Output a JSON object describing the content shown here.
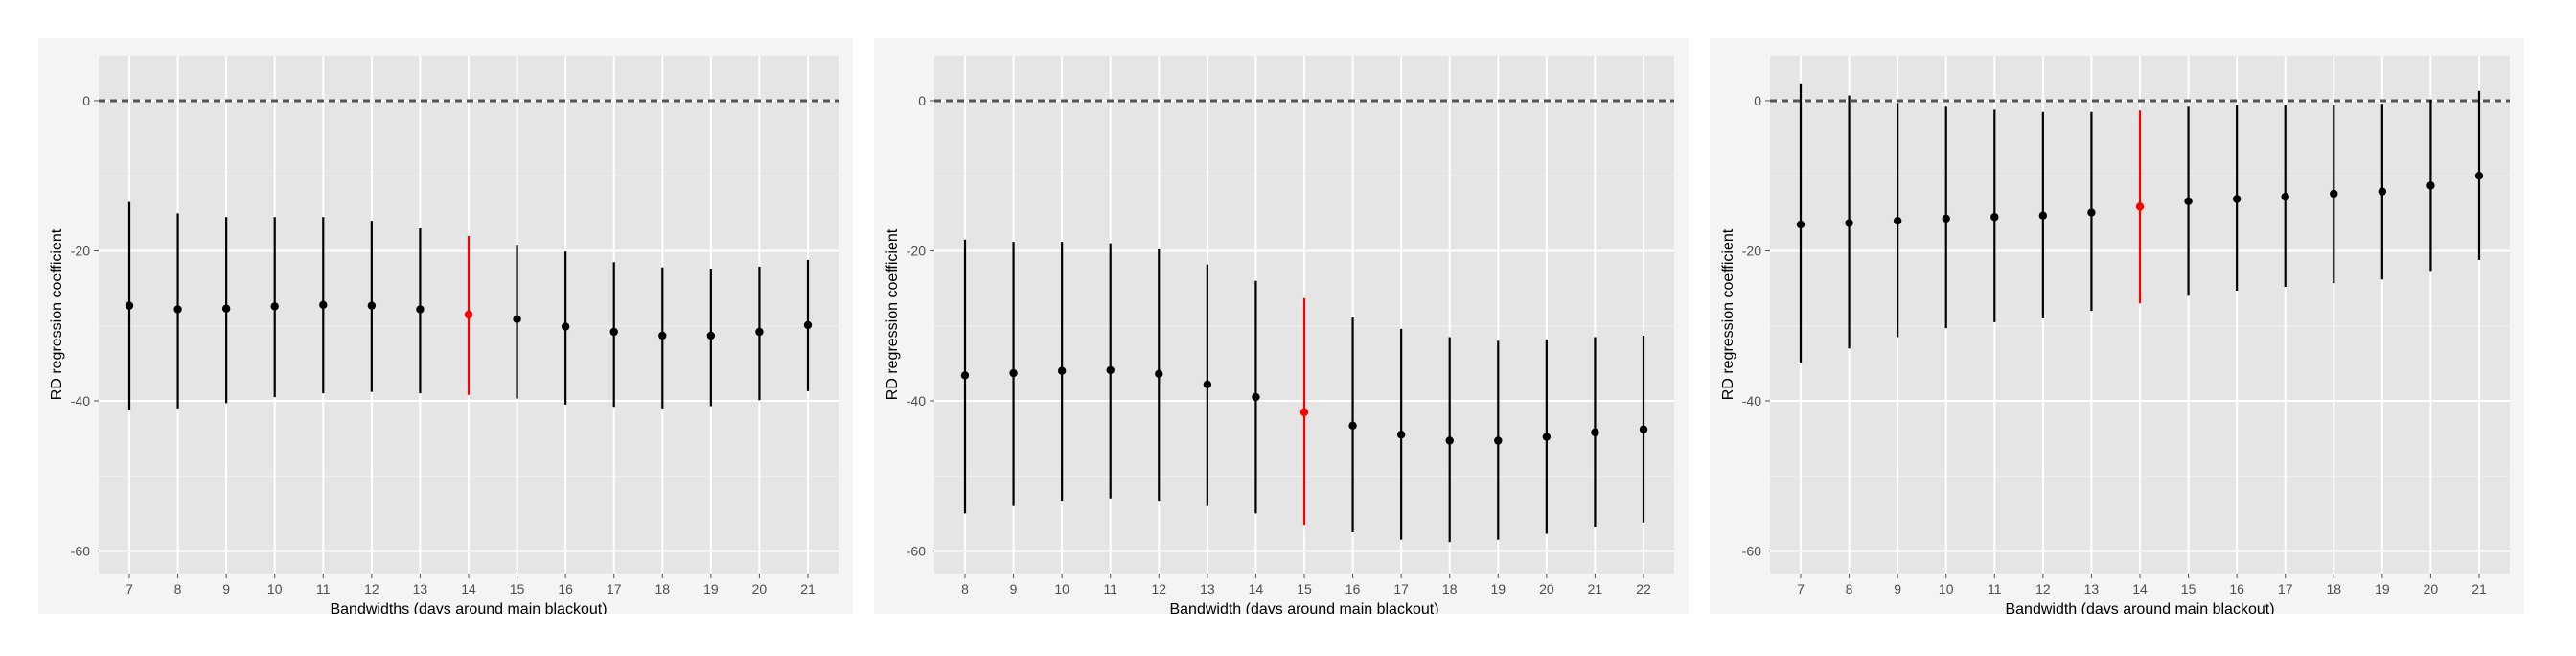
{
  "chart_data": [
    {
      "type": "errorbar",
      "xlabel": "Bandwidths (days around main blackout)",
      "ylabel": "RD regression coefficient",
      "ylim": [
        -63,
        6
      ],
      "yticks": [
        0,
        -20,
        -40,
        -60
      ],
      "reference_line": 0,
      "categories": [
        7,
        8,
        9,
        10,
        11,
        12,
        13,
        14,
        15,
        16,
        17,
        18,
        19,
        20,
        21
      ],
      "estimate": [
        -27.3,
        -27.8,
        -27.7,
        -27.4,
        -27.2,
        -27.3,
        -27.8,
        -28.5,
        -29.1,
        -30.1,
        -30.8,
        -31.3,
        -31.3,
        -30.8,
        -29.9
      ],
      "lower": [
        -41.2,
        -41.0,
        -40.3,
        -39.5,
        -39.0,
        -38.8,
        -39.0,
        -39.2,
        -39.7,
        -40.5,
        -40.8,
        -41.0,
        -40.7,
        -39.9,
        -38.7
      ],
      "upper": [
        -13.5,
        -15.0,
        -15.5,
        -15.5,
        -15.5,
        -16.0,
        -17.0,
        -18.0,
        -19.2,
        -20.1,
        -21.5,
        -22.2,
        -22.5,
        -22.1,
        -21.2
      ],
      "highlight": 14,
      "colors": {
        "default": "#000000",
        "highlight": "#ff0000"
      }
    },
    {
      "type": "errorbar",
      "xlabel": "Bandwidth (days around main blackout)",
      "ylabel": "RD regression coefficient",
      "ylim": [
        -63,
        6
      ],
      "yticks": [
        0,
        -20,
        -40,
        -60
      ],
      "reference_line": 0,
      "categories": [
        8,
        9,
        10,
        11,
        12,
        13,
        14,
        15,
        16,
        17,
        18,
        19,
        20,
        21,
        22
      ],
      "estimate": [
        -36.6,
        -36.3,
        -36.0,
        -35.9,
        -36.4,
        -37.8,
        -39.5,
        -41.5,
        -43.3,
        -44.5,
        -45.3,
        -45.3,
        -44.8,
        -44.2,
        -43.8
      ],
      "lower": [
        -55.0,
        -54.0,
        -53.3,
        -53.0,
        -53.3,
        -54.0,
        -55.0,
        -56.5,
        -57.5,
        -58.5,
        -58.8,
        -58.5,
        -57.7,
        -56.8,
        -56.2
      ],
      "upper": [
        -18.5,
        -18.8,
        -18.8,
        -19.0,
        -19.8,
        -21.8,
        -24.0,
        -26.3,
        -28.9,
        -30.4,
        -31.5,
        -32.0,
        -31.8,
        -31.5,
        -31.3
      ],
      "highlight": 15,
      "colors": {
        "default": "#000000",
        "highlight": "#ff0000"
      }
    },
    {
      "type": "errorbar",
      "xlabel": "Bandwidth (days around main blackout)",
      "ylabel": "RD regression coefficient",
      "ylim": [
        -63,
        6
      ],
      "yticks": [
        0,
        -20,
        -40,
        -60
      ],
      "reference_line": 0,
      "categories": [
        7,
        8,
        9,
        10,
        11,
        12,
        13,
        14,
        15,
        16,
        17,
        18,
        19,
        20,
        21
      ],
      "estimate": [
        -16.5,
        -16.3,
        -16.0,
        -15.7,
        -15.5,
        -15.3,
        -14.9,
        -14.1,
        -13.4,
        -13.1,
        -12.8,
        -12.4,
        -12.1,
        -11.3,
        -10.0
      ],
      "lower": [
        -35.0,
        -33.0,
        -31.5,
        -30.3,
        -29.5,
        -29.0,
        -28.0,
        -27.0,
        -26.0,
        -25.3,
        -24.8,
        -24.3,
        -23.8,
        -22.8,
        -21.2
      ],
      "upper": [
        2.2,
        0.7,
        -0.3,
        -0.8,
        -1.2,
        -1.5,
        -1.5,
        -1.3,
        -0.8,
        -0.6,
        -0.6,
        -0.6,
        -0.4,
        0.1,
        1.3
      ],
      "highlight": 14,
      "colors": {
        "default": "#000000",
        "highlight": "#ff0000"
      }
    }
  ]
}
